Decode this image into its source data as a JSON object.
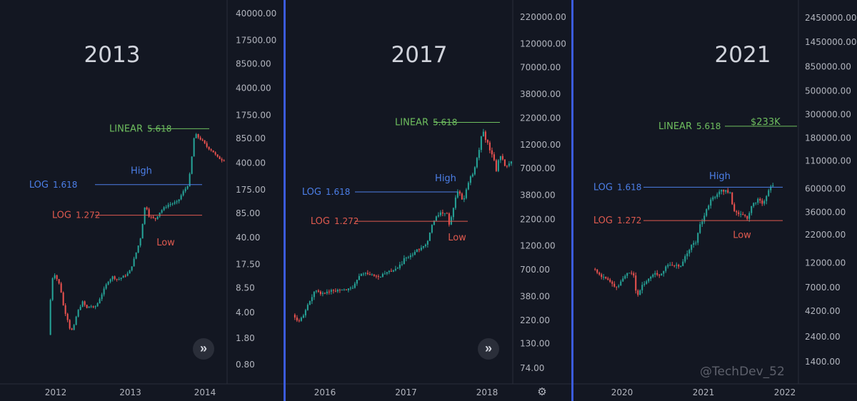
{
  "chart_data": [
    {
      "type": "candlestick",
      "title": "2013",
      "y_scale": "log",
      "y_ticks": [
        "40000.00",
        "17500.00",
        "8500.00",
        "4000.00",
        "1750.00",
        "850.00",
        "400.00",
        "175.00",
        "85.00",
        "40.00",
        "17.50",
        "8.50",
        "4.00",
        "1.80",
        "0.80"
      ],
      "x_ticks": [
        "2012",
        "2013",
        "2014"
      ],
      "series_path": [
        [
          2011.92,
          2.0
        ],
        [
          2011.96,
          9
        ],
        [
          2011.99,
          14
        ],
        [
          2012.02,
          12
        ],
        [
          2012.06,
          10
        ],
        [
          2012.1,
          7
        ],
        [
          2012.12,
          5
        ],
        [
          2012.14,
          4.2
        ],
        [
          2012.18,
          3.2
        ],
        [
          2012.22,
          2.2
        ],
        [
          2012.26,
          2.5
        ],
        [
          2012.28,
          3.2
        ],
        [
          2012.33,
          4.5
        ],
        [
          2012.38,
          5.5
        ],
        [
          2012.44,
          4.5
        ],
        [
          2012.48,
          5.0
        ],
        [
          2012.53,
          4.5
        ],
        [
          2012.58,
          5.3
        ],
        [
          2012.65,
          7.5
        ],
        [
          2012.72,
          10.5
        ],
        [
          2012.78,
          12
        ],
        [
          2012.85,
          11
        ],
        [
          2012.92,
          12
        ],
        [
          2013.0,
          13.5
        ],
        [
          2013.05,
          18
        ],
        [
          2013.12,
          30
        ],
        [
          2013.17,
          45
        ],
        [
          2013.2,
          95
        ],
        [
          2013.23,
          110
        ],
        [
          2013.26,
          80
        ],
        [
          2013.3,
          75
        ],
        [
          2013.35,
          70
        ],
        [
          2013.42,
          90
        ],
        [
          2013.52,
          110
        ],
        [
          2013.65,
          120
        ],
        [
          2013.72,
          160
        ],
        [
          2013.8,
          210
        ],
        [
          2013.84,
          450
        ],
        [
          2013.88,
          1000
        ],
        [
          2013.92,
          900
        ],
        [
          2013.98,
          800
        ],
        [
          2014.05,
          650
        ],
        [
          2014.12,
          580
        ],
        [
          2014.18,
          480
        ],
        [
          2014.25,
          440
        ]
      ],
      "annotations": [
        {
          "label": "LINEAR",
          "value": "5.618",
          "price": 1150,
          "color": "#6fbf5f"
        },
        {
          "label": "LOG",
          "value": "1.618",
          "price": 205,
          "color": "#4c7fe8"
        },
        {
          "label": "LOG",
          "value": "1.272",
          "price": 80,
          "color": "#e05a4f"
        },
        {
          "text": "High",
          "price": 262,
          "color": "#4c7fe8"
        },
        {
          "text": "Low",
          "price": 43,
          "color": "#e05a4f"
        }
      ]
    },
    {
      "type": "candlestick",
      "title": "2017",
      "y_scale": "log",
      "y_ticks": [
        "220000.00",
        "120000.00",
        "70000.00",
        "38000.00",
        "22000.00",
        "12000.00",
        "7000.00",
        "3800.00",
        "2200.00",
        "1200.00",
        "700.00",
        "380.00",
        "220.00",
        "130.00",
        "74.00"
      ],
      "x_ticks": [
        "2016",
        "2017",
        "2018"
      ],
      "series_path": [
        [
          2015.62,
          250
        ],
        [
          2015.68,
          210
        ],
        [
          2015.74,
          235
        ],
        [
          2015.8,
          300
        ],
        [
          2015.85,
          360
        ],
        [
          2015.88,
          430
        ],
        [
          2015.92,
          420
        ],
        [
          2015.97,
          410
        ],
        [
          2016.05,
          420
        ],
        [
          2016.12,
          440
        ],
        [
          2016.2,
          430
        ],
        [
          2016.3,
          450
        ],
        [
          2016.38,
          480
        ],
        [
          2016.45,
          650
        ],
        [
          2016.52,
          660
        ],
        [
          2016.6,
          610
        ],
        [
          2016.7,
          600
        ],
        [
          2016.8,
          660
        ],
        [
          2016.9,
          720
        ],
        [
          2016.96,
          780
        ],
        [
          2017.0,
          960
        ],
        [
          2017.05,
          900
        ],
        [
          2017.12,
          1050
        ],
        [
          2017.2,
          1150
        ],
        [
          2017.28,
          1300
        ],
        [
          2017.33,
          1850
        ],
        [
          2017.4,
          2400
        ],
        [
          2017.45,
          2600
        ],
        [
          2017.52,
          2500
        ],
        [
          2017.55,
          2000
        ],
        [
          2017.6,
          2800
        ],
        [
          2017.65,
          4300
        ],
        [
          2017.7,
          3900
        ],
        [
          2017.72,
          3000
        ],
        [
          2017.75,
          4100
        ],
        [
          2017.8,
          5600
        ],
        [
          2017.85,
          6400
        ],
        [
          2017.88,
          8000
        ],
        [
          2017.92,
          11000
        ],
        [
          2017.96,
          17000
        ],
        [
          2017.99,
          14000
        ],
        [
          2018.03,
          12500
        ],
        [
          2018.06,
          10200
        ],
        [
          2018.1,
          8700
        ],
        [
          2018.13,
          6600
        ],
        [
          2018.17,
          9800
        ],
        [
          2018.21,
          8500
        ],
        [
          2018.25,
          7000
        ],
        [
          2018.3,
          8000
        ],
        [
          2018.35,
          9300
        ]
      ],
      "annotations": [
        {
          "label": "LINEAR",
          "value": "5.618",
          "price": 20000,
          "color": "#6fbf5f"
        },
        {
          "label": "LOG",
          "value": "1.618",
          "price": 4100,
          "color": "#4c7fe8"
        },
        {
          "label": "LOG",
          "value": "1.272",
          "price": 2100,
          "color": "#e05a4f"
        },
        {
          "text": "High",
          "price": 4900,
          "color": "#4c7fe8"
        },
        {
          "text": "Low",
          "price": 1700,
          "color": "#e05a4f"
        }
      ]
    },
    {
      "type": "candlestick",
      "title": "2021",
      "y_scale": "log",
      "y_ticks": [
        "2450000.00",
        "1450000.00",
        "850000.00",
        "500000.00",
        "300000.00",
        "180000.00",
        "110000.00",
        "60000.00",
        "36000.00",
        "22000.00",
        "12000.00",
        "7000.00",
        "4200.00",
        "2400.00",
        "1400.00"
      ],
      "x_ticks": [
        "2020",
        "2021",
        "2022"
      ],
      "series_path": [
        [
          2019.66,
          10500
        ],
        [
          2019.7,
          9900
        ],
        [
          2019.75,
          8900
        ],
        [
          2019.8,
          9000
        ],
        [
          2019.86,
          8200
        ],
        [
          2019.92,
          7200
        ],
        [
          2019.98,
          7300
        ],
        [
          2020.03,
          8800
        ],
        [
          2020.1,
          10000
        ],
        [
          2020.16,
          8900
        ],
        [
          2020.2,
          5500
        ],
        [
          2020.23,
          6500
        ],
        [
          2020.3,
          8000
        ],
        [
          2020.4,
          9500
        ],
        [
          2020.5,
          9300
        ],
        [
          2020.58,
          11500
        ],
        [
          2020.65,
          11700
        ],
        [
          2020.72,
          10900
        ],
        [
          2020.8,
          13800
        ],
        [
          2020.87,
          18000
        ],
        [
          2020.93,
          19000
        ],
        [
          2020.97,
          27000
        ],
        [
          2021.03,
          33000
        ],
        [
          2021.1,
          47000
        ],
        [
          2021.15,
          50000
        ],
        [
          2021.22,
          58000
        ],
        [
          2021.3,
          57000
        ],
        [
          2021.35,
          55000
        ],
        [
          2021.38,
          38000
        ],
        [
          2021.45,
          34000
        ],
        [
          2021.52,
          33000
        ],
        [
          2021.56,
          32000
        ],
        [
          2021.6,
          40000
        ],
        [
          2021.65,
          45000
        ],
        [
          2021.7,
          48000
        ],
        [
          2021.74,
          43000
        ],
        [
          2021.78,
          48000
        ],
        [
          2021.82,
          60000
        ],
        [
          2021.86,
          63000
        ]
      ],
      "annotations": [
        {
          "label": "LINEAR",
          "value": "5.618",
          "price": 233000,
          "color": "#6fbf5f",
          "text": "$233K"
        },
        {
          "label": "LOG",
          "value": "1.618",
          "price": 62000,
          "color": "#4c7fe8"
        },
        {
          "label": "LOG",
          "value": "1.272",
          "price": 30000,
          "color": "#e05a4f"
        },
        {
          "text": "High",
          "price": 69500,
          "color": "#4c7fe8"
        },
        {
          "text": "Low",
          "price": 25500,
          "color": "#e05a4f"
        }
      ]
    }
  ],
  "watermark": "@TechDev_52",
  "icons": {
    "scroll": "double-chevron-right-icon",
    "settings": "gear-icon"
  },
  "colors": {
    "up": "#26a69a",
    "down": "#ef5350",
    "separator": "#3b5bdb",
    "background": "#131722"
  }
}
